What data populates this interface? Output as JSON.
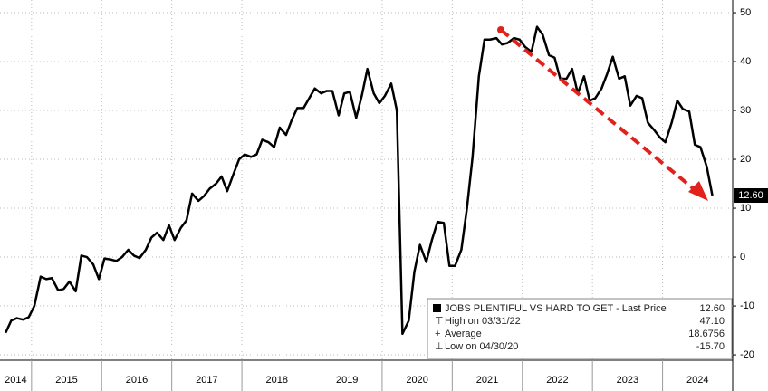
{
  "chart_data": {
    "type": "line",
    "color": "#000000",
    "grid": true,
    "x": [
      2014.63,
      2014.71,
      2014.79,
      2014.88,
      2014.96,
      2015.04,
      2015.13,
      2015.21,
      2015.29,
      2015.38,
      2015.46,
      2015.54,
      2015.63,
      2015.71,
      2015.79,
      2015.88,
      2015.96,
      2016.04,
      2016.13,
      2016.21,
      2016.29,
      2016.38,
      2016.46,
      2016.54,
      2016.63,
      2016.71,
      2016.79,
      2016.88,
      2016.96,
      2017.04,
      2017.13,
      2017.21,
      2017.29,
      2017.38,
      2017.46,
      2017.54,
      2017.63,
      2017.71,
      2017.79,
      2017.88,
      2017.96,
      2018.04,
      2018.13,
      2018.21,
      2018.29,
      2018.38,
      2018.46,
      2018.54,
      2018.63,
      2018.71,
      2018.79,
      2018.88,
      2018.96,
      2019.04,
      2019.13,
      2019.21,
      2019.29,
      2019.38,
      2019.46,
      2019.54,
      2019.63,
      2019.71,
      2019.79,
      2019.88,
      2019.96,
      2020.04,
      2020.13,
      2020.21,
      2020.29,
      2020.38,
      2020.46,
      2020.54,
      2020.63,
      2020.71,
      2020.79,
      2020.88,
      2020.96,
      2021.04,
      2021.13,
      2021.21,
      2021.29,
      2021.38,
      2021.46,
      2021.54,
      2021.63,
      2021.71,
      2021.79,
      2021.88,
      2021.96,
      2022.04,
      2022.13,
      2022.21,
      2022.29,
      2022.38,
      2022.46,
      2022.54,
      2022.63,
      2022.71,
      2022.79,
      2022.88,
      2022.96,
      2023.04,
      2023.13,
      2023.21,
      2023.29,
      2023.38,
      2023.46,
      2023.54,
      2023.63,
      2023.71,
      2023.79,
      2023.88,
      2023.96,
      2024.04,
      2024.13,
      2024.21,
      2024.29,
      2024.38,
      2024.46,
      2024.54,
      2024.63,
      2024.71
    ],
    "values": [
      -15.5,
      -13,
      -12.5,
      -12.8,
      -12.3,
      -10,
      -4,
      -4.5,
      -4.3,
      -6.8,
      -6.5,
      -5,
      -7,
      0.3,
      0,
      -1.5,
      -4.5,
      -0.3,
      -0.5,
      -0.8,
      0,
      1.5,
      0.3,
      -0.2,
      1.5,
      4,
      5,
      3.5,
      6.5,
      3.5,
      6,
      7.5,
      13,
      11.5,
      12.5,
      14,
      15,
      16.5,
      13.5,
      17,
      20,
      21,
      20.5,
      21,
      24,
      23.5,
      22.5,
      26.5,
      25,
      28,
      30.5,
      30.5,
      32.5,
      34.5,
      33.5,
      34,
      34,
      29,
      33.5,
      33.8,
      28.5,
      33,
      38.5,
      33.5,
      31.5,
      33,
      35.5,
      30,
      -15.7,
      -13,
      -3,
      2.5,
      -1,
      3.5,
      7.2,
      7,
      -1.8,
      -1.8,
      1.5,
      10,
      20.5,
      37,
      44.5,
      44.5,
      44.8,
      43.5,
      43.8,
      44.8,
      44.5,
      43,
      42,
      47.1,
      45.5,
      41.3,
      40.8,
      36.5,
      36.5,
      38.5,
      33.5,
      37,
      32,
      32.5,
      34.5,
      37.5,
      41,
      36.5,
      37,
      31,
      33,
      32.5,
      27.5,
      26,
      24.5,
      23.5,
      27.5,
      32,
      30.3,
      29.8,
      23,
      22.5,
      18.5,
      12.6
    ],
    "xlim": [
      2014.55,
      2025
    ],
    "xticks": [
      2014,
      2015,
      2016,
      2017,
      2018,
      2019,
      2020,
      2021,
      2022,
      2023,
      2024
    ],
    "ylim": [
      -21.1,
      52.6
    ],
    "yticks": [
      50,
      40,
      30,
      20,
      10,
      0,
      -10,
      -20
    ],
    "stats": {
      "labels": [
        "JOBS PLENTIFUL VS HARD TO GET - Last Price",
        "High on 03/31/22",
        "Average",
        "Low on 04/30/20"
      ],
      "value_labels": [
        "12.60",
        "47.10",
        "18.6756",
        "-15.70"
      ]
    }
  }
}
